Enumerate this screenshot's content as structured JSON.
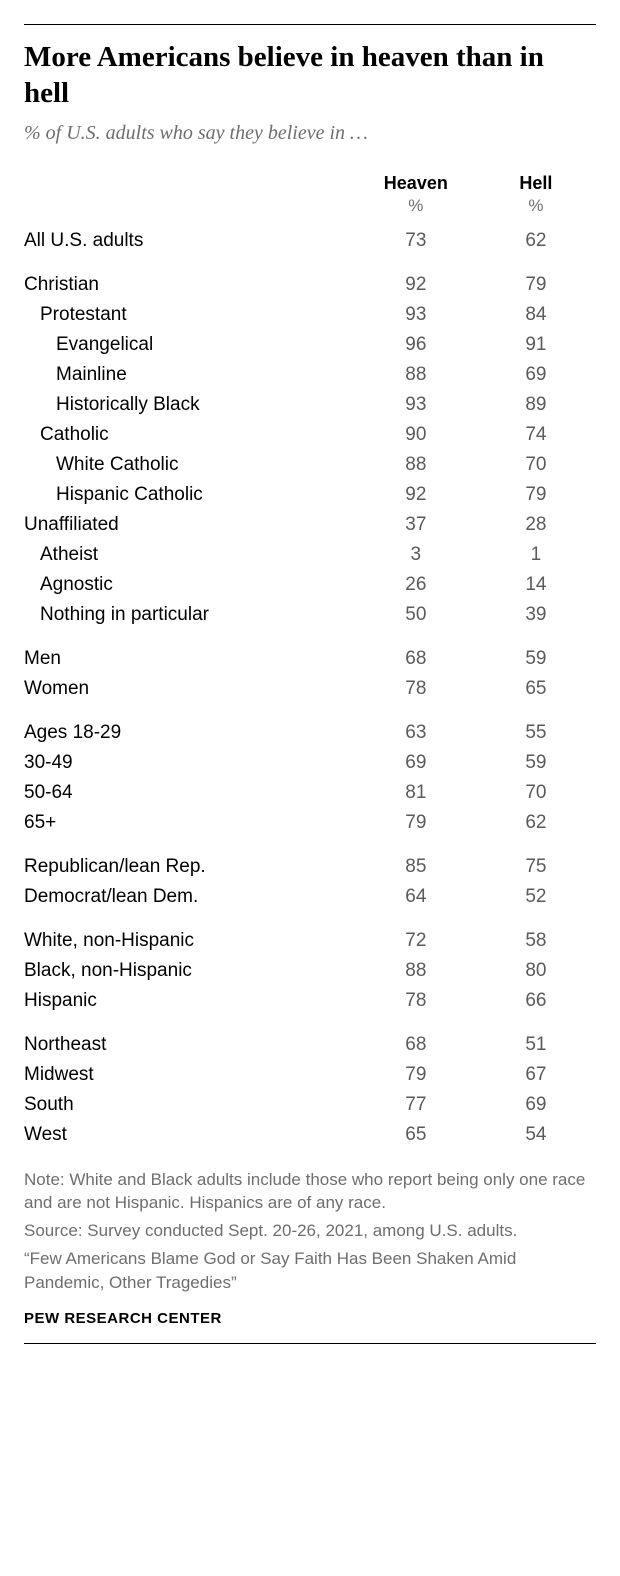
{
  "title": "More Americans believe in heaven than in hell",
  "subtitle": "% of U.S. adults who say they believe in …",
  "columns": {
    "col1": "Heaven",
    "col2": "Hell",
    "pct": "%"
  },
  "rows": [
    {
      "label": "All U.S. adults",
      "heaven": "73",
      "hell": "62",
      "indent": 0,
      "gap": false
    },
    {
      "label": "Christian",
      "heaven": "92",
      "hell": "79",
      "indent": 0,
      "gap": true
    },
    {
      "label": "Protestant",
      "heaven": "93",
      "hell": "84",
      "indent": 1,
      "gap": false
    },
    {
      "label": "Evangelical",
      "heaven": "96",
      "hell": "91",
      "indent": 2,
      "gap": false
    },
    {
      "label": "Mainline",
      "heaven": "88",
      "hell": "69",
      "indent": 2,
      "gap": false
    },
    {
      "label": "Historically Black",
      "heaven": "93",
      "hell": "89",
      "indent": 2,
      "gap": false
    },
    {
      "label": "Catholic",
      "heaven": "90",
      "hell": "74",
      "indent": 1,
      "gap": false
    },
    {
      "label": "White Catholic",
      "heaven": "88",
      "hell": "70",
      "indent": 2,
      "gap": false
    },
    {
      "label": "Hispanic Catholic",
      "heaven": "92",
      "hell": "79",
      "indent": 2,
      "gap": false
    },
    {
      "label": "Unaffiliated",
      "heaven": "37",
      "hell": "28",
      "indent": 0,
      "gap": false
    },
    {
      "label": "Atheist",
      "heaven": "3",
      "hell": "1",
      "indent": 1,
      "gap": false
    },
    {
      "label": "Agnostic",
      "heaven": "26",
      "hell": "14",
      "indent": 1,
      "gap": false
    },
    {
      "label": "Nothing in particular",
      "heaven": "50",
      "hell": "39",
      "indent": 1,
      "gap": false
    },
    {
      "label": "Men",
      "heaven": "68",
      "hell": "59",
      "indent": 0,
      "gap": true
    },
    {
      "label": "Women",
      "heaven": "78",
      "hell": "65",
      "indent": 0,
      "gap": false
    },
    {
      "label": "Ages 18-29",
      "heaven": "63",
      "hell": "55",
      "indent": 0,
      "gap": true
    },
    {
      "label": "30-49",
      "heaven": "69",
      "hell": "59",
      "indent": 0,
      "gap": false
    },
    {
      "label": "50-64",
      "heaven": "81",
      "hell": "70",
      "indent": 0,
      "gap": false
    },
    {
      "label": "65+",
      "heaven": "79",
      "hell": "62",
      "indent": 0,
      "gap": false
    },
    {
      "label": "Republican/lean Rep.",
      "heaven": "85",
      "hell": "75",
      "indent": 0,
      "gap": true
    },
    {
      "label": "Democrat/lean Dem.",
      "heaven": "64",
      "hell": "52",
      "indent": 0,
      "gap": false
    },
    {
      "label": "White, non-Hispanic",
      "heaven": "72",
      "hell": "58",
      "indent": 0,
      "gap": true
    },
    {
      "label": "Black, non-Hispanic",
      "heaven": "88",
      "hell": "80",
      "indent": 0,
      "gap": false
    },
    {
      "label": "Hispanic",
      "heaven": "78",
      "hell": "66",
      "indent": 0,
      "gap": false
    },
    {
      "label": "Northeast",
      "heaven": "68",
      "hell": "51",
      "indent": 0,
      "gap": true
    },
    {
      "label": "Midwest",
      "heaven": "79",
      "hell": "67",
      "indent": 0,
      "gap": false
    },
    {
      "label": "South",
      "heaven": "77",
      "hell": "69",
      "indent": 0,
      "gap": false
    },
    {
      "label": "West",
      "heaven": "65",
      "hell": "54",
      "indent": 0,
      "gap": false
    }
  ],
  "notes": [
    "Note: White and Black adults include those who report being only one race and are not Hispanic. Hispanics are of any race.",
    "Source: Survey conducted Sept. 20-26, 2021, among U.S. adults.",
    "“Few Americans Blame God or Say Faith Has Been Shaken Amid Pandemic, Other Tragedies”"
  ],
  "attribution": "PEW RESEARCH CENTER"
}
